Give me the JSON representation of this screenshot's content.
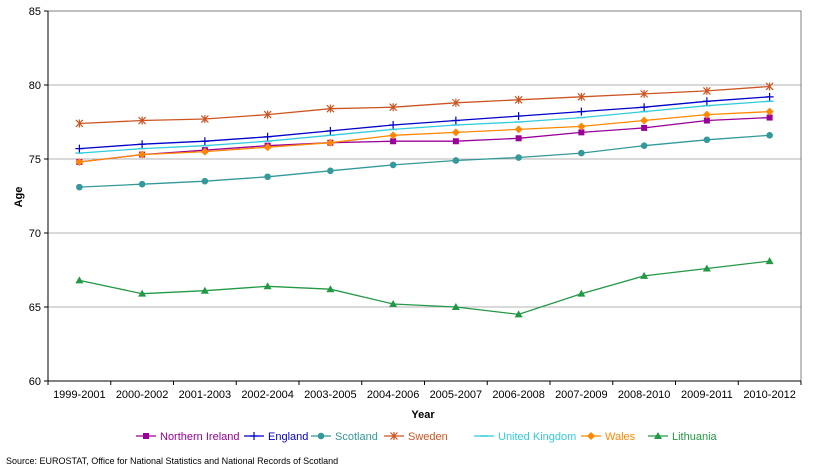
{
  "chart_data": {
    "type": "line",
    "title": "",
    "xlabel": "Year",
    "ylabel": "Age",
    "ylim": [
      60,
      85
    ],
    "yticks": [
      60,
      65,
      70,
      75,
      80,
      85
    ],
    "grid": true,
    "legend_position": "bottom",
    "categories": [
      "1999-2001",
      "2000-2002",
      "2001-2003",
      "2002-2004",
      "2003-2005",
      "2004-2006",
      "2005-2007",
      "2006-2008",
      "2007-2009",
      "2008-2010",
      "2009-2011",
      "2010-2012"
    ],
    "series": [
      {
        "name": "Northern Ireland",
        "color": "#990099",
        "marker": "square",
        "values": [
          74.8,
          75.3,
          75.6,
          75.9,
          76.1,
          76.2,
          76.2,
          76.4,
          76.8,
          77.1,
          77.6,
          77.8
        ]
      },
      {
        "name": "England",
        "color": "#0000cc",
        "marker": "plus",
        "values": [
          75.7,
          76.0,
          76.2,
          76.5,
          76.9,
          77.3,
          77.6,
          77.9,
          78.2,
          78.5,
          78.9,
          79.2
        ]
      },
      {
        "name": "Scotland",
        "color": "#339999",
        "marker": "circle",
        "values": [
          73.1,
          73.3,
          73.5,
          73.8,
          74.2,
          74.6,
          74.9,
          75.1,
          75.4,
          75.9,
          76.3,
          76.6
        ]
      },
      {
        "name": "Sweden",
        "color": "#cc5522",
        "marker": "star",
        "values": [
          77.4,
          77.6,
          77.7,
          78.0,
          78.4,
          78.5,
          78.8,
          79.0,
          79.2,
          79.4,
          79.6,
          79.9
        ]
      },
      {
        "name": "United Kingdom",
        "color": "#33ccdd",
        "marker": "dash",
        "values": [
          75.4,
          75.7,
          75.9,
          76.2,
          76.6,
          77.0,
          77.3,
          77.5,
          77.8,
          78.2,
          78.6,
          78.9
        ]
      },
      {
        "name": "Wales",
        "color": "#ff8800",
        "marker": "diamond",
        "values": [
          74.8,
          75.3,
          75.5,
          75.8,
          76.1,
          76.6,
          76.8,
          77.0,
          77.2,
          77.6,
          78.0,
          78.2
        ]
      },
      {
        "name": "Lithuania",
        "color": "#229944",
        "marker": "triangle",
        "values": [
          66.8,
          65.9,
          66.1,
          66.4,
          66.2,
          65.2,
          65.0,
          64.5,
          65.9,
          67.1,
          67.6,
          68.1
        ]
      }
    ]
  },
  "source_text": "Source: EUROSTAT, Office for National Statistics and National Records of Scotland"
}
